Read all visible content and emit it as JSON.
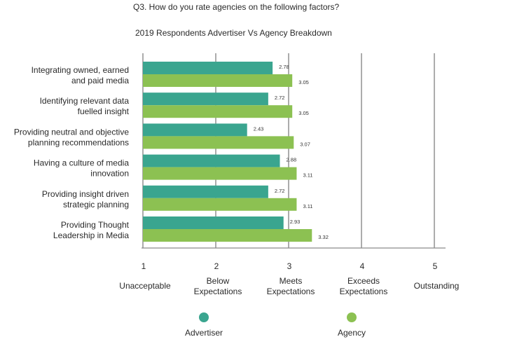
{
  "question": "Q3. How do you rate agencies on the following factors?",
  "chart_data": {
    "type": "bar",
    "orientation": "horizontal",
    "title": "2019 Respondents Advertiser Vs Agency Breakdown",
    "categories": [
      [
        "Integrating owned, earned",
        "and paid media"
      ],
      [
        "Identifying relevant data",
        "fuelled insight"
      ],
      [
        "Providing neutral and objective",
        "planning recommendations"
      ],
      [
        "Having a culture of media",
        "innovation"
      ],
      [
        "Providing insight driven",
        "strategic planning"
      ],
      [
        "Providing Thought",
        "Leadership in Media"
      ]
    ],
    "series": [
      {
        "name": "Advertiser",
        "color": "#3aa58f",
        "values": [
          2.78,
          2.72,
          2.43,
          2.88,
          2.72,
          2.93
        ]
      },
      {
        "name": "Agency",
        "color": "#8cc152",
        "values": [
          3.05,
          3.05,
          3.07,
          3.11,
          3.11,
          3.32
        ]
      }
    ],
    "xlim": [
      1,
      5
    ],
    "ticks": [
      {
        "value": 1,
        "label": "1",
        "desc": [
          "Unacceptable"
        ]
      },
      {
        "value": 2,
        "label": "2",
        "desc": [
          "Below",
          "Expectations"
        ]
      },
      {
        "value": 3,
        "label": "3",
        "desc": [
          "Meets",
          "Expectations"
        ]
      },
      {
        "value": 4,
        "label": "4",
        "desc": [
          "Exceeds",
          "Expectations"
        ]
      },
      {
        "value": 5,
        "label": "5",
        "desc": [
          "Outstanding"
        ]
      }
    ],
    "grid": true,
    "gridline_color": "#5a5a5a",
    "legend_position": "bottom"
  }
}
